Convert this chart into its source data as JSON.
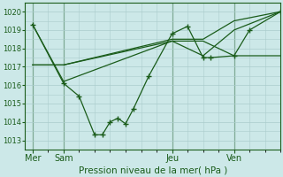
{
  "bg_color": "#cce8e8",
  "grid_color": "#aacccc",
  "line_color": "#1a5c1a",
  "xlabel": "Pression niveau de la mer( hPa )",
  "ylim": [
    1012.5,
    1020.5
  ],
  "yticks": [
    1013,
    1014,
    1015,
    1016,
    1017,
    1018,
    1019,
    1020
  ],
  "xtick_labels": [
    "Mer",
    "Sam",
    "Jeu",
    "Ven"
  ],
  "xtick_positions": [
    0,
    2,
    9,
    13
  ],
  "vline_positions": [
    0,
    2,
    9,
    13
  ],
  "xlim": [
    -0.5,
    16
  ],
  "series": [
    {
      "x": [
        0,
        2,
        3,
        4,
        4.5,
        5,
        5.5,
        6,
        6.5,
        7.5,
        9,
        10,
        11,
        11.5,
        13,
        14,
        16
      ],
      "y": [
        1019.3,
        1016.1,
        1015.4,
        1013.3,
        1013.3,
        1014.0,
        1014.2,
        1013.9,
        1014.7,
        1016.5,
        1018.8,
        1019.2,
        1017.5,
        1017.5,
        1017.6,
        1019.0,
        1020.0
      ],
      "marker": true
    },
    {
      "x": [
        0,
        2,
        9,
        11,
        13,
        16
      ],
      "y": [
        1017.1,
        1017.1,
        1018.4,
        1018.4,
        1017.6,
        1017.6
      ],
      "marker": false
    },
    {
      "x": [
        0,
        2,
        9,
        11,
        13,
        16
      ],
      "y": [
        1017.1,
        1017.1,
        1018.5,
        1018.5,
        1019.5,
        1020.0
      ],
      "marker": false
    },
    {
      "x": [
        0,
        2,
        9,
        11,
        13,
        16
      ],
      "y": [
        1019.3,
        1016.2,
        1018.4,
        1017.6,
        1019.0,
        1020.0
      ],
      "marker": false
    }
  ]
}
